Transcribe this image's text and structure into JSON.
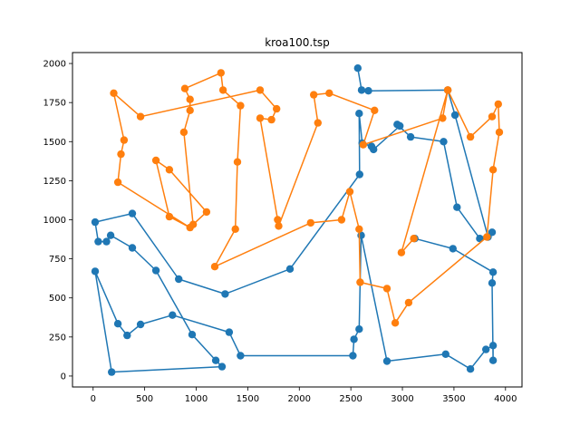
{
  "chart_data": {
    "type": "line",
    "title": "kroa100.tsp",
    "xlabel": "",
    "ylabel": "",
    "xlim": [
      -200,
      4160
    ],
    "ylim": [
      -70,
      2070
    ],
    "xticks": [
      0,
      500,
      1000,
      1500,
      2000,
      2500,
      3000,
      3500,
      4000
    ],
    "yticks": [
      0,
      250,
      500,
      750,
      1000,
      1250,
      1500,
      1750,
      2000
    ],
    "grid": false,
    "legend": "none",
    "series": [
      {
        "color": "#1f77b4",
        "points": [
          [
            2567,
            1970
          ],
          [
            2604,
            1830
          ],
          [
            2670,
            1825
          ],
          [
            3440,
            1830
          ],
          [
            3510,
            1670
          ],
          [
            3830,
            890
          ],
          [
            3870,
            920
          ],
          [
            3750,
            880
          ],
          [
            3530,
            1080
          ],
          [
            3400,
            1500
          ],
          [
            3080,
            1530
          ],
          [
            2950,
            1610
          ],
          [
            2975,
            1600
          ],
          [
            2720,
            1450
          ],
          [
            2700,
            1470
          ],
          [
            2610,
            1490
          ],
          [
            2580,
            1680
          ],
          [
            2585,
            1290
          ],
          [
            1910,
            685
          ],
          [
            1280,
            525
          ],
          [
            830,
            620
          ],
          [
            380,
            1040
          ],
          [
            20,
            985
          ],
          [
            50,
            860
          ],
          [
            130,
            860
          ],
          [
            170,
            900
          ],
          [
            380,
            820
          ],
          [
            610,
            675
          ],
          [
            960,
            265
          ],
          [
            1190,
            100
          ],
          [
            1250,
            60
          ],
          [
            180,
            25
          ],
          [
            20,
            670
          ],
          [
            240,
            335
          ],
          [
            330,
            260
          ],
          [
            460,
            330
          ],
          [
            770,
            390
          ],
          [
            1320,
            280
          ],
          [
            1430,
            130
          ],
          [
            2520,
            130
          ],
          [
            2530,
            235
          ],
          [
            2580,
            300
          ],
          [
            2600,
            900
          ],
          [
            2850,
            95
          ],
          [
            3420,
            140
          ],
          [
            3660,
            45
          ],
          [
            3810,
            170
          ],
          [
            3880,
            195
          ],
          [
            3880,
            100
          ],
          [
            3870,
            595
          ],
          [
            3880,
            665
          ],
          [
            3490,
            815
          ],
          [
            3120,
            880
          ]
        ]
      },
      {
        "color": "#ff7f0e",
        "points": [
          [
            3440,
            1830
          ],
          [
            3660,
            1530
          ],
          [
            3870,
            1660
          ],
          [
            3930,
            1740
          ],
          [
            3940,
            1560
          ],
          [
            3880,
            1320
          ],
          [
            3820,
            890
          ],
          [
            3060,
            470
          ],
          [
            2930,
            340
          ],
          [
            2850,
            560
          ],
          [
            2590,
            600
          ],
          [
            2580,
            940
          ],
          [
            2490,
            1180
          ],
          [
            2410,
            1000
          ],
          [
            2110,
            980
          ],
          [
            1180,
            700
          ],
          [
            1380,
            940
          ],
          [
            1400,
            1370
          ],
          [
            1430,
            1730
          ],
          [
            1260,
            1830
          ],
          [
            1240,
            1940
          ],
          [
            890,
            1840
          ],
          [
            940,
            1770
          ],
          [
            940,
            1700
          ],
          [
            880,
            1560
          ],
          [
            970,
            970
          ],
          [
            1100,
            1050
          ],
          [
            740,
            1320
          ],
          [
            610,
            1380
          ],
          [
            740,
            1020
          ],
          [
            940,
            950
          ],
          [
            240,
            1240
          ],
          [
            270,
            1420
          ],
          [
            300,
            1510
          ],
          [
            200,
            1810
          ],
          [
            460,
            1660
          ],
          [
            1620,
            1830
          ],
          [
            1780,
            1710
          ],
          [
            1730,
            1640
          ],
          [
            1620,
            1650
          ],
          [
            1790,
            1000
          ],
          [
            1800,
            960
          ],
          [
            2180,
            1620
          ],
          [
            2140,
            1800
          ],
          [
            2290,
            1810
          ],
          [
            2730,
            1700
          ],
          [
            2620,
            1480
          ],
          [
            3390,
            1650
          ],
          [
            3440,
            1830
          ],
          [
            2990,
            790
          ],
          [
            3110,
            880
          ]
        ]
      }
    ]
  }
}
